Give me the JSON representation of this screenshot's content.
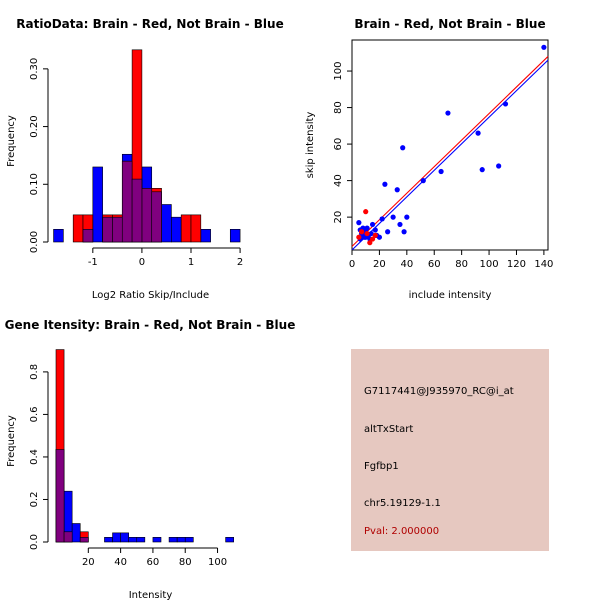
{
  "colors": {
    "red": "#ff0000",
    "blue": "#0000ff",
    "purple": "#80007f",
    "panel": "#e6c8c0",
    "pval": "#b00000"
  },
  "chart_data": [
    {
      "type": "bar",
      "title": "RatioData: Brain - Red, Not Brain - Blue",
      "xlabel": "Log2 Ratio Skip/Include",
      "ylabel": "Frequency",
      "xlim": [
        -1.75,
        2.1
      ],
      "ylim": [
        0,
        0.35
      ],
      "xticks": [
        -1,
        0,
        1,
        2
      ],
      "yticks": [
        0.0,
        0.1,
        0.2,
        0.3
      ],
      "ytick_labels": [
        "0.00",
        "0.10",
        "0.20",
        "0.30"
      ],
      "bin_width": 0.2,
      "series": [
        {
          "name": "Not Brain",
          "color": "blue",
          "bins": [
            [
              -1.8,
              0.022
            ],
            [
              -1.2,
              0.022
            ],
            [
              -1.0,
              0.13
            ],
            [
              -0.8,
              0.043
            ],
            [
              -0.6,
              0.043
            ],
            [
              -0.4,
              0.152
            ],
            [
              -0.2,
              0.109
            ],
            [
              0.0,
              0.13
            ],
            [
              0.2,
              0.087
            ],
            [
              0.4,
              0.065
            ],
            [
              0.6,
              0.043
            ],
            [
              1.2,
              0.022
            ],
            [
              1.8,
              0.022
            ]
          ]
        },
        {
          "name": "Brain",
          "color": "red",
          "bins": [
            [
              -1.4,
              0.047
            ],
            [
              -1.2,
              0.047
            ],
            [
              -0.8,
              0.047
            ],
            [
              -0.6,
              0.047
            ],
            [
              -0.4,
              0.14
            ],
            [
              -0.2,
              0.333
            ],
            [
              0.0,
              0.093
            ],
            [
              0.2,
              0.093
            ],
            [
              0.8,
              0.047
            ],
            [
              1.0,
              0.047
            ]
          ]
        }
      ]
    },
    {
      "type": "scatter",
      "title": "Brain - Red, Not Brain - Blue",
      "xlabel": "include intensity",
      "ylabel": "skip intensity",
      "xlim": [
        0,
        143
      ],
      "ylim": [
        2,
        117
      ],
      "xticks": [
        0,
        20,
        40,
        60,
        80,
        100,
        120,
        140
      ],
      "yticks": [
        20,
        40,
        60,
        80,
        100
      ],
      "series": [
        {
          "name": "Not Brain",
          "color": "blue",
          "points": [
            [
              5,
              17
            ],
            [
              6,
              13
            ],
            [
              7,
              11
            ],
            [
              8,
              10
            ],
            [
              9,
              9
            ],
            [
              10,
              12
            ],
            [
              11,
              14
            ],
            [
              12,
              10
            ],
            [
              13,
              8
            ],
            [
              15,
              16
            ],
            [
              17,
              13
            ],
            [
              18,
              10
            ],
            [
              20,
              9
            ],
            [
              22,
              19
            ],
            [
              24,
              38
            ],
            [
              26,
              12
            ],
            [
              30,
              20
            ],
            [
              33,
              35
            ],
            [
              35,
              16
            ],
            [
              37,
              58
            ],
            [
              38,
              12
            ],
            [
              40,
              20
            ],
            [
              52,
              40
            ],
            [
              65,
              45
            ],
            [
              70,
              77
            ],
            [
              92,
              66
            ],
            [
              95,
              46
            ],
            [
              107,
              48
            ],
            [
              112,
              82
            ],
            [
              140,
              113
            ],
            [
              6,
              8
            ],
            [
              8,
              14
            ],
            [
              10,
              9
            ],
            [
              14,
              11
            ]
          ]
        },
        {
          "name": "Brain",
          "color": "red",
          "points": [
            [
              5,
              9
            ],
            [
              7,
              12
            ],
            [
              10,
              23
            ],
            [
              11,
              11
            ],
            [
              13,
              6
            ],
            [
              15,
              8
            ],
            [
              17,
              10
            ]
          ]
        }
      ],
      "fit_lines": [
        {
          "color": "red",
          "x": [
            0,
            143
          ],
          "y": [
            4,
            108
          ]
        },
        {
          "color": "blue",
          "x": [
            0,
            143
          ],
          "y": [
            2,
            106
          ]
        }
      ]
    },
    {
      "type": "bar",
      "title": "Gene Itensity: Brain - Red, Not Brain - Blue",
      "xlabel": "Intensity",
      "ylabel": "Frequency",
      "xlim": [
        0,
        117
      ],
      "ylim": [
        0,
        0.95
      ],
      "xticks": [
        20,
        40,
        60,
        80,
        100
      ],
      "yticks": [
        0.0,
        0.2,
        0.4,
        0.6,
        0.8
      ],
      "ytick_labels": [
        "0.0",
        "0.2",
        "0.4",
        "0.6",
        "0.8"
      ],
      "bin_width": 5,
      "series": [
        {
          "name": "Not Brain",
          "color": "blue",
          "bins": [
            [
              0,
              0.435
            ],
            [
              5,
              0.239
            ],
            [
              10,
              0.087
            ],
            [
              15,
              0.022
            ],
            [
              30,
              0.022
            ],
            [
              35,
              0.043
            ],
            [
              40,
              0.043
            ],
            [
              45,
              0.022
            ],
            [
              50,
              0.022
            ],
            [
              60,
              0.022
            ],
            [
              70,
              0.022
            ],
            [
              75,
              0.022
            ],
            [
              80,
              0.022
            ],
            [
              105,
              0.022
            ]
          ]
        },
        {
          "name": "Brain",
          "color": "red",
          "bins": [
            [
              0,
              0.905
            ],
            [
              5,
              0.048
            ],
            [
              15,
              0.048
            ]
          ]
        }
      ]
    }
  ],
  "info_panel": {
    "probe_id": "G7117441@J935970_RC@i_at",
    "event_type": "altTxStart",
    "gene": "Fgfbp1",
    "location": "chr5.19129-1.1",
    "pval": "Pval: 2.000000"
  }
}
